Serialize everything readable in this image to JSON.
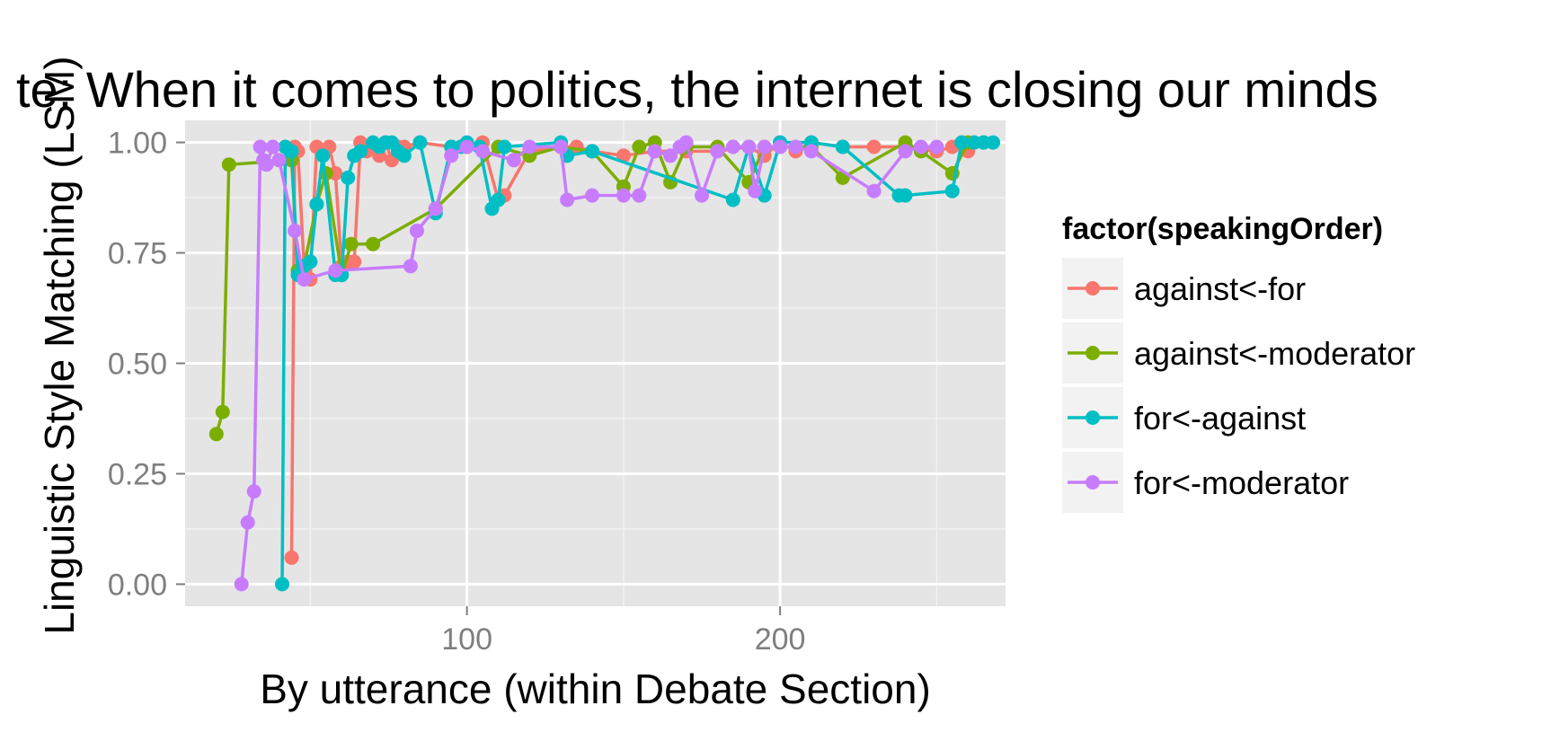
{
  "chart_data": {
    "type": "line",
    "title": "te: When it comes to politics, the internet is closing our minds",
    "xlabel": "By utterance (within Debate Section)",
    "ylabel": "Linguistic Style Matching (LSM)",
    "xlim": [
      10,
      272
    ],
    "ylim": [
      -0.05,
      1.05
    ],
    "x_ticks": [
      100,
      200
    ],
    "x_tick_labels": [
      "100",
      "200"
    ],
    "y_ticks": [
      0,
      0.25,
      0.5,
      0.75,
      1
    ],
    "y_tick_labels": [
      "0.00",
      "0.25",
      "0.50",
      "0.75",
      "1.00"
    ],
    "grid": true,
    "markers": true,
    "legend": {
      "title": "factor(speakingOrder)",
      "position": "right"
    },
    "series": [
      {
        "name": "against<-for",
        "color": "#F8766D",
        "x": [
          44,
          45,
          46,
          48,
          50,
          52,
          54,
          56,
          58,
          60,
          62,
          64,
          66,
          68,
          70,
          72,
          74,
          76,
          78,
          80,
          85,
          95,
          100,
          105,
          110,
          112,
          120,
          130,
          135,
          140,
          150,
          160,
          170,
          180,
          190,
          195,
          200,
          205,
          210,
          220,
          230,
          240,
          250,
          255,
          260
        ],
        "y": [
          0.06,
          0.99,
          0.98,
          0.72,
          0.69,
          0.99,
          0.98,
          0.99,
          0.93,
          0.72,
          0.73,
          0.73,
          1.0,
          0.98,
          0.99,
          0.97,
          1.0,
          0.96,
          0.99,
          0.99,
          1.0,
          0.99,
          0.99,
          1.0,
          0.87,
          0.88,
          0.98,
          0.99,
          0.99,
          0.98,
          0.97,
          0.98,
          0.98,
          0.98,
          0.99,
          0.97,
          1.0,
          0.98,
          1.0,
          0.99,
          0.99,
          0.99,
          0.98,
          0.99,
          0.98
        ]
      },
      {
        "name": "against<-moderator",
        "color": "#7CAE00",
        "x": [
          20,
          22,
          24,
          44,
          46,
          48,
          52,
          55,
          60,
          63,
          70,
          90,
          110,
          120,
          130,
          140,
          150,
          155,
          160,
          165,
          170,
          180,
          190,
          195,
          200,
          210,
          220,
          240,
          245,
          255,
          260,
          265
        ],
        "y": [
          0.34,
          0.39,
          0.95,
          0.96,
          0.71,
          0.72,
          0.86,
          0.93,
          0.7,
          0.77,
          0.77,
          0.85,
          0.99,
          0.97,
          0.99,
          0.98,
          0.9,
          0.99,
          1.0,
          0.91,
          0.99,
          0.99,
          0.91,
          0.99,
          0.99,
          0.99,
          0.92,
          1.0,
          0.98,
          0.93,
          1.0,
          1.0
        ]
      },
      {
        "name": "for<-against",
        "color": "#00BFC4",
        "x": [
          41,
          42,
          44,
          46,
          48,
          50,
          52,
          54,
          58,
          60,
          62,
          64,
          66,
          70,
          72,
          74,
          76,
          78,
          80,
          85,
          90,
          95,
          98,
          100,
          104,
          108,
          110,
          112,
          130,
          132,
          140,
          185,
          190,
          195,
          200,
          210,
          220,
          238,
          240,
          255,
          258,
          262,
          265,
          268
        ],
        "y": [
          0.0,
          0.99,
          0.98,
          0.7,
          0.72,
          0.73,
          0.86,
          0.97,
          0.7,
          0.7,
          0.92,
          0.97,
          0.98,
          1.0,
          0.99,
          1.0,
          1.0,
          0.98,
          0.97,
          1.0,
          0.84,
          0.99,
          0.99,
          1.0,
          0.99,
          0.85,
          0.87,
          0.99,
          1.0,
          0.97,
          0.98,
          0.87,
          0.99,
          0.88,
          1.0,
          1.0,
          0.99,
          0.88,
          0.88,
          0.89,
          1.0,
          1.0,
          1.0,
          1.0
        ]
      },
      {
        "name": "for<-moderator",
        "color": "#C77CFF",
        "x": [
          28,
          30,
          32,
          34,
          35,
          36,
          38,
          40,
          45,
          48,
          58,
          82,
          84,
          90,
          95,
          100,
          105,
          115,
          120,
          130,
          132,
          140,
          150,
          155,
          160,
          165,
          168,
          170,
          175,
          180,
          185,
          190,
          192,
          195,
          200,
          205,
          210,
          230,
          240,
          245,
          250
        ],
        "y": [
          0.0,
          0.14,
          0.21,
          0.99,
          0.96,
          0.95,
          0.99,
          0.96,
          0.8,
          0.69,
          0.71,
          0.72,
          0.8,
          0.85,
          0.97,
          0.99,
          0.98,
          0.96,
          0.99,
          0.99,
          0.87,
          0.88,
          0.88,
          0.88,
          0.98,
          0.97,
          0.99,
          1.0,
          0.88,
          0.98,
          0.99,
          0.99,
          0.89,
          0.99,
          0.99,
          0.99,
          0.98,
          0.89,
          0.98,
          0.99,
          0.99
        ]
      }
    ]
  }
}
